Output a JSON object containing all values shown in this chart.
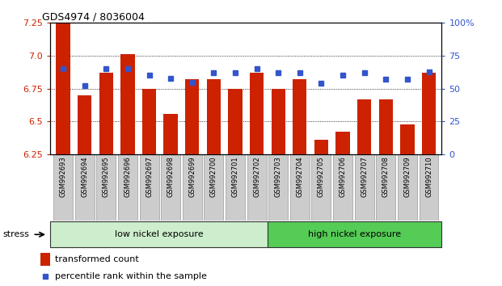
{
  "title": "GDS4974 / 8036004",
  "samples": [
    "GSM992693",
    "GSM992694",
    "GSM992695",
    "GSM992696",
    "GSM992697",
    "GSM992698",
    "GSM992699",
    "GSM992700",
    "GSM992701",
    "GSM992702",
    "GSM992703",
    "GSM992704",
    "GSM992705",
    "GSM992706",
    "GSM992707",
    "GSM992708",
    "GSM992709",
    "GSM992710"
  ],
  "transformed_count": [
    7.25,
    6.7,
    6.87,
    7.01,
    6.75,
    6.56,
    6.82,
    6.82,
    6.75,
    6.87,
    6.75,
    6.82,
    6.36,
    6.42,
    6.67,
    6.67,
    6.48,
    6.87
  ],
  "percentile_rank": [
    65,
    52,
    65,
    65,
    60,
    58,
    55,
    62,
    62,
    65,
    62,
    62,
    54,
    60,
    62,
    57,
    57,
    63
  ],
  "ylim_left": [
    6.25,
    7.25
  ],
  "ylim_right": [
    0,
    100
  ],
  "yticks_left": [
    6.25,
    6.5,
    6.75,
    7.0,
    7.25
  ],
  "yticks_right": [
    0,
    25,
    50,
    75,
    100
  ],
  "bar_color": "#cc2200",
  "dot_color": "#3355cc",
  "bar_bottom": 6.25,
  "group1_label": "low nickel exposure",
  "group2_label": "high nickel exposure",
  "group1_count": 10,
  "stress_label": "stress",
  "legend_bar": "transformed count",
  "legend_dot": "percentile rank within the sample",
  "group1_color": "#cceecc",
  "group2_color": "#55cc55",
  "tick_label_bg": "#cccccc",
  "tick_label_border": "#999999"
}
